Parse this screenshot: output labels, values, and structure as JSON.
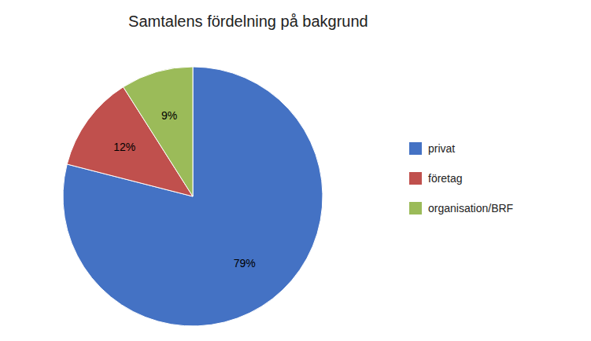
{
  "chart_data": {
    "type": "pie",
    "title": "Samtalens fördelning på bakgrund",
    "categories": [
      "privat",
      "företag",
      "organisation/BRF"
    ],
    "values": [
      79,
      12,
      9
    ],
    "value_labels": [
      "79%",
      "12%",
      "9%"
    ],
    "colors": [
      "#4472C4",
      "#C0504D",
      "#9BBB59"
    ],
    "data_labels": true,
    "legend": "right"
  }
}
